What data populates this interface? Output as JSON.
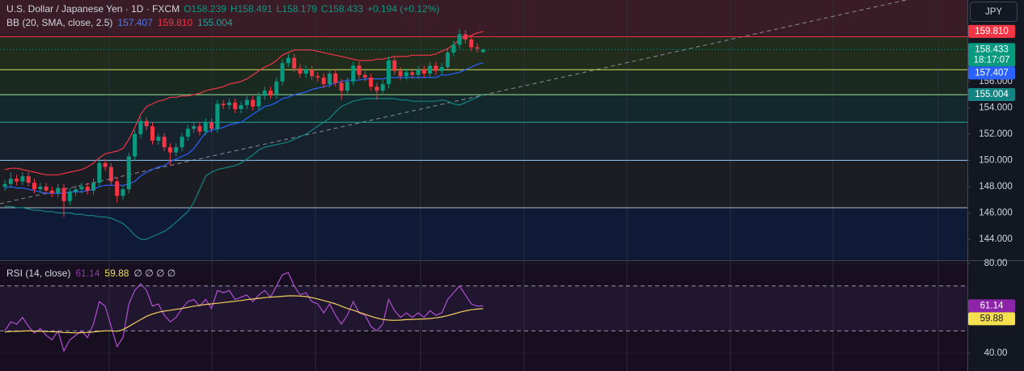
{
  "header": {
    "symbol": "U.S. Dollar / Japanese Yen · 1D · FXCM",
    "ohlc": [
      "O158.239",
      "H158.491",
      "L158.179",
      "C158.433"
    ],
    "change": "+0.194 (+0.12%)"
  },
  "bb_legend": {
    "title": "BB (20, SMA, close, 2.5)",
    "values": [
      "157.407",
      "159.810",
      "155.004"
    ]
  },
  "rsi_legend": {
    "title": "RSI (14, close)",
    "values": [
      "61.14",
      "59.88"
    ],
    "inputs": "∅ ∅ ∅ ∅"
  },
  "currency": "JPY",
  "chart_data": [
    {
      "type": "candlestick",
      "up_color": "#089981",
      "down_color": "#f23645",
      "open": [
        148.0,
        148.2,
        148.6,
        148.4,
        148.8,
        148.3,
        147.8,
        148.0,
        147.7,
        147.5,
        147.9,
        146.9,
        147.6,
        147.8,
        148.0,
        147.7,
        148.3,
        149.8,
        149.5,
        148.4,
        147.3,
        147.8,
        150.3,
        152.0,
        153.0,
        152.6,
        151.5,
        151.8,
        151.0,
        150.6,
        151.0,
        151.8,
        152.4,
        152.6,
        152.2,
        152.9,
        152.4,
        154.3,
        154.2,
        154.4,
        153.9,
        154.2,
        154.6,
        154.1,
        154.9,
        155.3,
        155.0,
        156.0,
        157.4,
        157.8,
        157.0,
        156.6,
        156.9,
        156.4,
        156.3,
        155.8,
        156.6,
        155.9,
        155.3,
        156.0,
        157.2,
        156.5,
        156.3,
        155.6,
        155.3,
        155.8,
        157.6,
        156.8,
        156.4,
        156.7,
        156.5,
        156.9,
        156.6,
        157.2,
        156.8,
        157.1,
        158.2,
        158.8,
        159.6,
        159.2,
        158.6,
        158.239
      ],
      "high": [
        148.5,
        149.1,
        148.9,
        149.1,
        149.1,
        148.6,
        148.3,
        148.3,
        148.0,
        148.2,
        148.2,
        147.9,
        148.1,
        148.3,
        148.3,
        148.6,
        150.1,
        150.1,
        149.8,
        148.7,
        148.1,
        150.6,
        152.3,
        153.3,
        153.3,
        152.9,
        152.1,
        152.1,
        151.3,
        151.3,
        152.1,
        152.7,
        152.9,
        152.9,
        153.2,
        153.2,
        154.6,
        154.6,
        154.7,
        154.7,
        154.5,
        154.9,
        154.9,
        155.2,
        155.6,
        155.6,
        156.3,
        157.7,
        158.1,
        158.1,
        157.3,
        157.2,
        157.2,
        156.7,
        156.6,
        156.9,
        156.9,
        156.2,
        156.3,
        157.5,
        157.5,
        156.8,
        156.6,
        155.9,
        156.1,
        157.9,
        157.9,
        157.1,
        157.0,
        157.0,
        157.2,
        157.2,
        157.5,
        157.5,
        157.4,
        158.5,
        159.1,
        160.0,
        159.9,
        159.5,
        158.9,
        158.491
      ],
      "low": [
        147.7,
        147.9,
        148.1,
        148.1,
        148.0,
        147.5,
        147.5,
        147.4,
        147.2,
        147.2,
        145.7,
        146.6,
        147.3,
        147.5,
        147.4,
        147.4,
        148.0,
        149.2,
        148.1,
        146.8,
        147.0,
        147.5,
        150.0,
        151.7,
        152.3,
        151.2,
        151.2,
        150.7,
        149.6,
        150.3,
        150.7,
        151.5,
        152.1,
        151.9,
        151.9,
        152.1,
        152.1,
        153.9,
        153.9,
        153.6,
        153.6,
        153.9,
        153.8,
        153.8,
        154.6,
        154.7,
        154.7,
        155.7,
        157.1,
        156.7,
        156.3,
        156.3,
        156.1,
        156.0,
        155.5,
        155.5,
        155.6,
        154.6,
        155.0,
        155.7,
        156.2,
        156.0,
        155.3,
        154.6,
        155.0,
        155.5,
        156.5,
        156.1,
        156.1,
        156.2,
        156.2,
        156.3,
        156.3,
        156.5,
        156.5,
        156.8,
        157.9,
        158.5,
        158.9,
        158.3,
        158.2,
        158.179
      ],
      "close": [
        148.2,
        148.6,
        148.4,
        148.8,
        148.3,
        147.8,
        148.0,
        147.7,
        147.5,
        147.9,
        146.9,
        147.6,
        147.8,
        148.0,
        147.7,
        148.3,
        149.8,
        149.5,
        148.4,
        147.3,
        147.8,
        150.3,
        152.0,
        153.0,
        152.6,
        151.5,
        151.8,
        151.0,
        150.6,
        151.0,
        151.8,
        152.4,
        152.6,
        152.2,
        152.9,
        152.4,
        154.3,
        154.2,
        154.4,
        153.9,
        154.2,
        154.6,
        154.1,
        154.9,
        155.3,
        155.0,
        156.0,
        157.4,
        157.8,
        157.0,
        156.6,
        156.9,
        156.4,
        156.3,
        155.8,
        156.6,
        155.9,
        155.3,
        156.0,
        157.2,
        156.5,
        156.3,
        155.6,
        155.3,
        155.8,
        157.6,
        156.8,
        156.4,
        156.7,
        156.5,
        156.9,
        156.6,
        157.2,
        156.8,
        157.1,
        158.2,
        158.8,
        159.6,
        159.2,
        158.6,
        158.5,
        158.433
      ],
      "series": [
        {
          "color": "#f23645",
          "values": [
            149.3,
            149.4,
            149.4,
            149.3,
            149.2,
            149.1,
            149.0,
            148.9,
            148.9,
            148.9,
            149.0,
            149.1,
            149.2,
            149.3,
            149.5,
            149.8,
            150.2,
            150.5,
            150.6,
            150.7,
            150.9,
            151.6,
            152.5,
            153.5,
            154.1,
            154.3,
            154.5,
            154.6,
            154.8,
            154.8,
            154.9,
            154.9,
            155.0,
            155.1,
            155.3,
            155.4,
            155.5,
            155.6,
            155.8,
            155.9,
            156.0,
            156.2,
            156.5,
            156.8,
            157.1,
            157.3,
            157.6,
            158.0,
            158.2,
            158.4,
            158.4,
            158.4,
            158.4,
            158.3,
            158.2,
            158.1,
            158.0,
            157.9,
            157.8,
            157.7,
            157.6,
            157.6,
            157.6,
            157.7,
            157.7,
            157.8,
            157.9,
            157.9,
            157.9,
            158.0,
            158.0,
            158.0,
            158.0,
            158.1,
            158.3,
            158.5,
            158.8,
            159.2,
            159.4,
            159.5,
            159.7,
            159.81
          ]
        },
        {
          "color": "#2962ff",
          "values": [
            147.9,
            148.0,
            147.9,
            147.9,
            147.8,
            147.7,
            147.6,
            147.5,
            147.5,
            147.5,
            147.5,
            147.6,
            147.6,
            147.6,
            147.7,
            147.8,
            148.0,
            148.1,
            148.1,
            148.1,
            148.1,
            148.2,
            148.4,
            148.8,
            149.1,
            149.3,
            149.5,
            149.6,
            149.9,
            150.1,
            150.3,
            150.5,
            150.9,
            151.5,
            152.1,
            152.3,
            152.4,
            152.5,
            152.7,
            152.8,
            152.9,
            153.2,
            153.5,
            153.8,
            154.1,
            154.2,
            154.4,
            154.7,
            154.8,
            155.0,
            155.1,
            155.2,
            155.4,
            155.5,
            155.6,
            155.7,
            155.9,
            156.0,
            156.1,
            156.1,
            156.1,
            156.2,
            156.2,
            156.2,
            156.2,
            156.3,
            156.3,
            156.3,
            156.3,
            156.3,
            156.3,
            156.3,
            156.3,
            156.3,
            156.5,
            156.5,
            156.6,
            156.7,
            156.9,
            157.1,
            157.3,
            157.407
          ]
        },
        {
          "color": "#138484",
          "values": [
            146.5,
            146.5,
            146.4,
            146.4,
            146.3,
            146.2,
            146.2,
            146.1,
            146.1,
            146.0,
            146.0,
            146.0,
            145.9,
            145.9,
            145.8,
            145.8,
            145.7,
            145.7,
            145.6,
            145.4,
            145.2,
            144.8,
            144.3,
            144.0,
            144.0,
            144.2,
            144.4,
            144.6,
            144.9,
            145.3,
            145.7,
            146.1,
            146.8,
            147.8,
            148.8,
            149.1,
            149.3,
            149.4,
            149.5,
            149.6,
            149.8,
            150.1,
            150.4,
            150.8,
            151.0,
            151.1,
            151.2,
            151.3,
            151.4,
            151.6,
            151.8,
            152.0,
            152.3,
            152.6,
            152.9,
            153.2,
            153.7,
            154.1,
            154.3,
            154.5,
            154.6,
            154.7,
            154.7,
            154.7,
            154.7,
            154.7,
            154.7,
            154.6,
            154.6,
            154.5,
            154.5,
            154.5,
            154.5,
            154.5,
            154.6,
            154.5,
            154.3,
            154.2,
            154.4,
            154.6,
            154.8,
            155.004
          ]
        }
      ],
      "levels": [
        {
          "value": 159.4,
          "color": "#f23645"
        },
        {
          "value": 156.9,
          "color": "#d4e157"
        },
        {
          "value": 155.0,
          "color": "#9be08f"
        },
        {
          "value": 152.9,
          "color": "#26a69a"
        },
        {
          "value": 150.0,
          "color": "#90caf9"
        },
        {
          "value": 146.4,
          "color": "#b0bec5"
        }
      ],
      "zone_colors": [
        "#3a1c26",
        "#222c1c",
        "#1b2a21",
        "#13282b",
        "#17222e",
        "#1c1d22",
        "#0f1a36"
      ],
      "ylim": [
        142.4,
        162.2
      ],
      "yticks": [
        {
          "value": 144,
          "label": "144.000"
        },
        {
          "value": 146,
          "label": "146.000"
        },
        {
          "value": 148,
          "label": "148.000"
        },
        {
          "value": 150,
          "label": "150.000"
        },
        {
          "value": 152,
          "label": "152.000"
        },
        {
          "value": 154,
          "label": "154.000"
        },
        {
          "value": 156,
          "label": "156.000"
        }
      ],
      "price_labels": [
        {
          "value": 159.81,
          "label": "159.810",
          "color": "#f23645"
        },
        {
          "value": 158.433,
          "label": "158.433",
          "sub": "18:17:07",
          "color": "#089981"
        },
        {
          "value": 157.407,
          "label": "157.407",
          "color": "#2962ff"
        },
        {
          "value": 155.004,
          "label": "155.004",
          "color": "#138484"
        }
      ]
    },
    {
      "type": "line",
      "series": [
        {
          "color": "#b04fd0",
          "values": [
            50,
            54,
            53,
            56,
            52,
            49,
            51,
            48,
            46,
            50,
            41,
            46,
            48,
            50,
            47,
            53,
            63,
            61,
            52,
            43,
            47,
            62,
            68,
            71,
            68,
            61,
            62,
            57,
            54,
            56,
            60,
            63,
            64,
            61,
            64,
            60,
            68,
            67,
            68,
            64,
            65,
            66,
            63,
            66,
            68,
            65,
            70,
            75,
            76,
            70,
            66,
            67,
            63,
            62,
            58,
            62,
            57,
            53,
            57,
            63,
            58,
            57,
            52,
            50,
            53,
            64,
            59,
            56,
            58,
            56,
            58,
            56,
            59,
            57,
            58,
            64,
            67,
            70,
            66,
            62,
            61,
            61.14
          ]
        },
        {
          "color": "#f5d05c",
          "values": [
            49.5,
            49.7,
            49.8,
            49.9,
            50.0,
            49.9,
            49.8,
            49.7,
            49.6,
            49.5,
            49.3,
            49.2,
            49.1,
            49.2,
            49.3,
            49.5,
            49.8,
            50.0,
            50.0,
            49.8,
            50.5,
            52.0,
            53.5,
            55.0,
            56.5,
            57.5,
            58.3,
            58.8,
            59.2,
            59.6,
            60.0,
            60.5,
            61.0,
            61.4,
            61.8,
            62.0,
            62.3,
            62.6,
            62.9,
            63.2,
            63.5,
            63.9,
            64.2,
            64.5,
            64.8,
            65.0,
            65.2,
            65.4,
            65.6,
            65.6,
            65.5,
            65.3,
            64.8,
            64.2,
            63.5,
            62.8,
            62.0,
            61.0,
            60.0,
            59.2,
            58.3,
            57.4,
            56.5,
            55.7,
            55.1,
            54.8,
            54.7,
            54.8,
            55.0,
            55.1,
            55.2,
            55.3,
            55.5,
            55.8,
            56.2,
            56.8,
            57.5,
            58.3,
            58.9,
            59.4,
            59.7,
            59.88
          ]
        }
      ],
      "bands": [
        70,
        50
      ],
      "ylim": [
        32.1,
        81.1
      ],
      "yticks": [
        {
          "value": 80,
          "label": "80.00"
        },
        {
          "value": 40,
          "label": "40.00"
        }
      ],
      "price_labels": [
        {
          "value": 61.14,
          "label": "61.14",
          "color": "#8e24aa"
        },
        {
          "value": 59.88,
          "label": "59.88",
          "color": "#f5e050"
        }
      ]
    }
  ]
}
